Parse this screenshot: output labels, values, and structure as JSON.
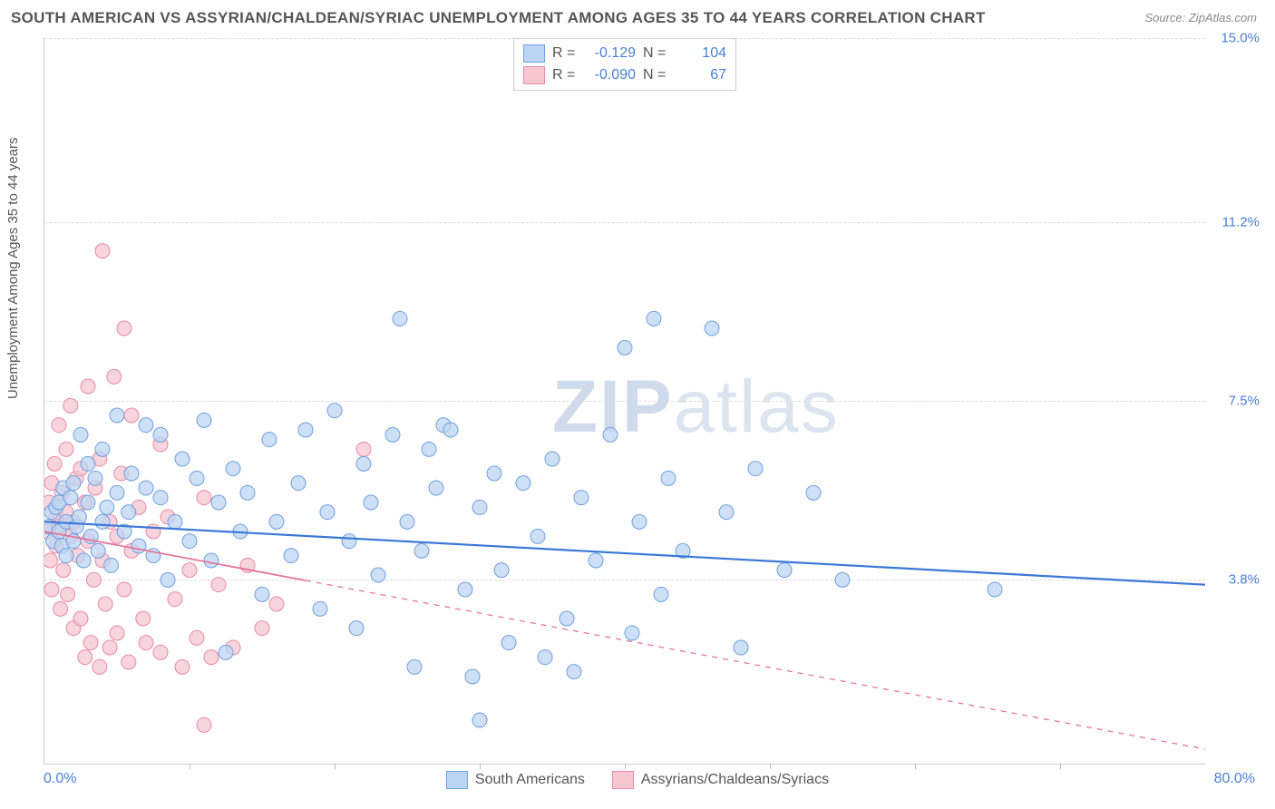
{
  "title": "SOUTH AMERICAN VS ASSYRIAN/CHALDEAN/SYRIAC UNEMPLOYMENT AMONG AGES 35 TO 44 YEARS CORRELATION CHART",
  "source": "Source: ZipAtlas.com",
  "y_axis_label": "Unemployment Among Ages 35 to 44 years",
  "watermark_a": "ZIP",
  "watermark_b": "atlas",
  "chart": {
    "type": "scatter",
    "background_color": "#ffffff",
    "grid_color": "#dddddd",
    "axis_color": "#cccccc",
    "xlim": [
      0,
      80
    ],
    "ylim": [
      0,
      15
    ],
    "x_start_label": "0.0%",
    "x_end_label": "80.0%",
    "y_ticks": [
      {
        "v": 3.8,
        "label": "3.8%"
      },
      {
        "v": 7.5,
        "label": "7.5%"
      },
      {
        "v": 11.2,
        "label": "11.2%"
      },
      {
        "v": 15.0,
        "label": "15.0%"
      }
    ],
    "x_tick_positions": [
      10,
      20,
      30,
      40,
      50,
      60,
      70
    ],
    "series": [
      {
        "id": "south_americans",
        "label": "South Americans",
        "color_fill": "#bcd5f2",
        "color_stroke": "#6f9fe0",
        "swatch_fill": "#bcd5f2",
        "swatch_border": "#6f9fe0",
        "marker_radius": 8,
        "marker_opacity": 0.75,
        "R": "-0.129",
        "N": "104",
        "trend": {
          "y_at_x0": 5.0,
          "y_at_xmax": 3.7,
          "solid_until": 80,
          "line_color": "#3b78d8",
          "line_width": 2.2
        },
        "points": [
          [
            0.3,
            4.9
          ],
          [
            0.5,
            5.2
          ],
          [
            0.6,
            4.6
          ],
          [
            0.8,
            5.3
          ],
          [
            1.0,
            4.8
          ],
          [
            1.0,
            5.4
          ],
          [
            1.2,
            4.5
          ],
          [
            1.3,
            5.7
          ],
          [
            1.5,
            4.3
          ],
          [
            1.5,
            5.0
          ],
          [
            1.8,
            5.5
          ],
          [
            2.0,
            4.6
          ],
          [
            2.0,
            5.8
          ],
          [
            2.2,
            4.9
          ],
          [
            2.4,
            5.1
          ],
          [
            2.5,
            6.8
          ],
          [
            2.7,
            4.2
          ],
          [
            3.0,
            5.4
          ],
          [
            3.0,
            6.2
          ],
          [
            3.2,
            4.7
          ],
          [
            3.5,
            5.9
          ],
          [
            3.7,
            4.4
          ],
          [
            4.0,
            5.0
          ],
          [
            4.0,
            6.5
          ],
          [
            4.3,
            5.3
          ],
          [
            4.6,
            4.1
          ],
          [
            5.0,
            5.6
          ],
          [
            5.0,
            7.2
          ],
          [
            5.5,
            4.8
          ],
          [
            5.8,
            5.2
          ],
          [
            6.0,
            6.0
          ],
          [
            6.5,
            4.5
          ],
          [
            7.0,
            5.7
          ],
          [
            7.0,
            7.0
          ],
          [
            7.5,
            4.3
          ],
          [
            8.0,
            5.5
          ],
          [
            8.0,
            6.8
          ],
          [
            8.5,
            3.8
          ],
          [
            9.0,
            5.0
          ],
          [
            9.5,
            6.3
          ],
          [
            10.0,
            4.6
          ],
          [
            10.5,
            5.9
          ],
          [
            11.0,
            7.1
          ],
          [
            11.5,
            4.2
          ],
          [
            12.0,
            5.4
          ],
          [
            12.5,
            2.3
          ],
          [
            13.0,
            6.1
          ],
          [
            13.5,
            4.8
          ],
          [
            14.0,
            5.6
          ],
          [
            15.0,
            3.5
          ],
          [
            15.5,
            6.7
          ],
          [
            16.0,
            5.0
          ],
          [
            17.0,
            4.3
          ],
          [
            17.5,
            5.8
          ],
          [
            18.0,
            6.9
          ],
          [
            19.0,
            3.2
          ],
          [
            19.5,
            5.2
          ],
          [
            20.0,
            7.3
          ],
          [
            21.0,
            4.6
          ],
          [
            21.5,
            2.8
          ],
          [
            22.0,
            6.2
          ],
          [
            22.5,
            5.4
          ],
          [
            23.0,
            3.9
          ],
          [
            24.0,
            6.8
          ],
          [
            24.5,
            9.2
          ],
          [
            25.0,
            5.0
          ],
          [
            25.5,
            2.0
          ],
          [
            26.0,
            4.4
          ],
          [
            26.5,
            6.5
          ],
          [
            27.0,
            5.7
          ],
          [
            27.5,
            7.0
          ],
          [
            28.0,
            6.9
          ],
          [
            29.0,
            3.6
          ],
          [
            29.5,
            1.8
          ],
          [
            30.0,
            5.3
          ],
          [
            30.0,
            0.9
          ],
          [
            31.0,
            6.0
          ],
          [
            31.5,
            4.0
          ],
          [
            32.0,
            2.5
          ],
          [
            33.0,
            5.8
          ],
          [
            34.0,
            4.7
          ],
          [
            34.5,
            2.2
          ],
          [
            35.0,
            6.3
          ],
          [
            36.0,
            3.0
          ],
          [
            36.5,
            1.9
          ],
          [
            37.0,
            5.5
          ],
          [
            38.0,
            4.2
          ],
          [
            39.0,
            6.8
          ],
          [
            40.0,
            8.6
          ],
          [
            40.5,
            2.7
          ],
          [
            41.0,
            5.0
          ],
          [
            42.0,
            9.2
          ],
          [
            42.5,
            3.5
          ],
          [
            43.0,
            5.9
          ],
          [
            44.0,
            4.4
          ],
          [
            46.0,
            9.0
          ],
          [
            47.0,
            5.2
          ],
          [
            48.0,
            2.4
          ],
          [
            49.0,
            6.1
          ],
          [
            51.0,
            4.0
          ],
          [
            53.0,
            5.6
          ],
          [
            55.0,
            3.8
          ],
          [
            65.5,
            3.6
          ]
        ]
      },
      {
        "id": "assyrians",
        "label": "Assyrians/Chaldeans/Syriacs",
        "color_fill": "#f6c6d1",
        "color_stroke": "#e78aa4",
        "swatch_fill": "#f6c6d1",
        "swatch_border": "#e78aa4",
        "marker_radius": 8,
        "marker_opacity": 0.75,
        "R": "-0.090",
        "N": "67",
        "trend": {
          "y_at_x0": 4.8,
          "y_at_xmax": 0.3,
          "solid_until": 18,
          "line_color": "#e57399",
          "line_width": 1.8
        },
        "points": [
          [
            0.2,
            4.8
          ],
          [
            0.3,
            5.4
          ],
          [
            0.4,
            4.2
          ],
          [
            0.5,
            5.8
          ],
          [
            0.5,
            3.6
          ],
          [
            0.7,
            6.2
          ],
          [
            0.8,
            4.5
          ],
          [
            0.8,
            5.1
          ],
          [
            1.0,
            7.0
          ],
          [
            1.0,
            4.9
          ],
          [
            1.1,
            3.2
          ],
          [
            1.2,
            5.6
          ],
          [
            1.3,
            4.0
          ],
          [
            1.5,
            6.5
          ],
          [
            1.5,
            5.2
          ],
          [
            1.6,
            3.5
          ],
          [
            1.8,
            4.7
          ],
          [
            1.8,
            7.4
          ],
          [
            2.0,
            5.0
          ],
          [
            2.0,
            2.8
          ],
          [
            2.2,
            5.9
          ],
          [
            2.3,
            4.3
          ],
          [
            2.5,
            6.1
          ],
          [
            2.5,
            3.0
          ],
          [
            2.8,
            2.2
          ],
          [
            2.8,
            5.4
          ],
          [
            3.0,
            4.6
          ],
          [
            3.0,
            7.8
          ],
          [
            3.2,
            2.5
          ],
          [
            3.4,
            3.8
          ],
          [
            3.5,
            5.7
          ],
          [
            3.8,
            2.0
          ],
          [
            3.8,
            6.3
          ],
          [
            4.0,
            4.2
          ],
          [
            4.0,
            10.6
          ],
          [
            4.2,
            3.3
          ],
          [
            4.5,
            5.0
          ],
          [
            4.5,
            2.4
          ],
          [
            4.8,
            8.0
          ],
          [
            5.0,
            4.7
          ],
          [
            5.0,
            2.7
          ],
          [
            5.3,
            6.0
          ],
          [
            5.5,
            3.6
          ],
          [
            5.5,
            9.0
          ],
          [
            5.8,
            2.1
          ],
          [
            6.0,
            4.4
          ],
          [
            6.0,
            7.2
          ],
          [
            6.5,
            5.3
          ],
          [
            6.8,
            3.0
          ],
          [
            7.0,
            2.5
          ],
          [
            7.5,
            4.8
          ],
          [
            8.0,
            6.6
          ],
          [
            8.0,
            2.3
          ],
          [
            8.5,
            5.1
          ],
          [
            9.0,
            3.4
          ],
          [
            9.5,
            2.0
          ],
          [
            10.0,
            4.0
          ],
          [
            10.5,
            2.6
          ],
          [
            11.0,
            5.5
          ],
          [
            11.0,
            0.8
          ],
          [
            11.5,
            2.2
          ],
          [
            12.0,
            3.7
          ],
          [
            13.0,
            2.4
          ],
          [
            14.0,
            4.1
          ],
          [
            15.0,
            2.8
          ],
          [
            16.0,
            3.3
          ],
          [
            22.0,
            6.5
          ]
        ]
      }
    ]
  },
  "legend_top": {
    "R_label": "R =",
    "N_label": "N ="
  }
}
